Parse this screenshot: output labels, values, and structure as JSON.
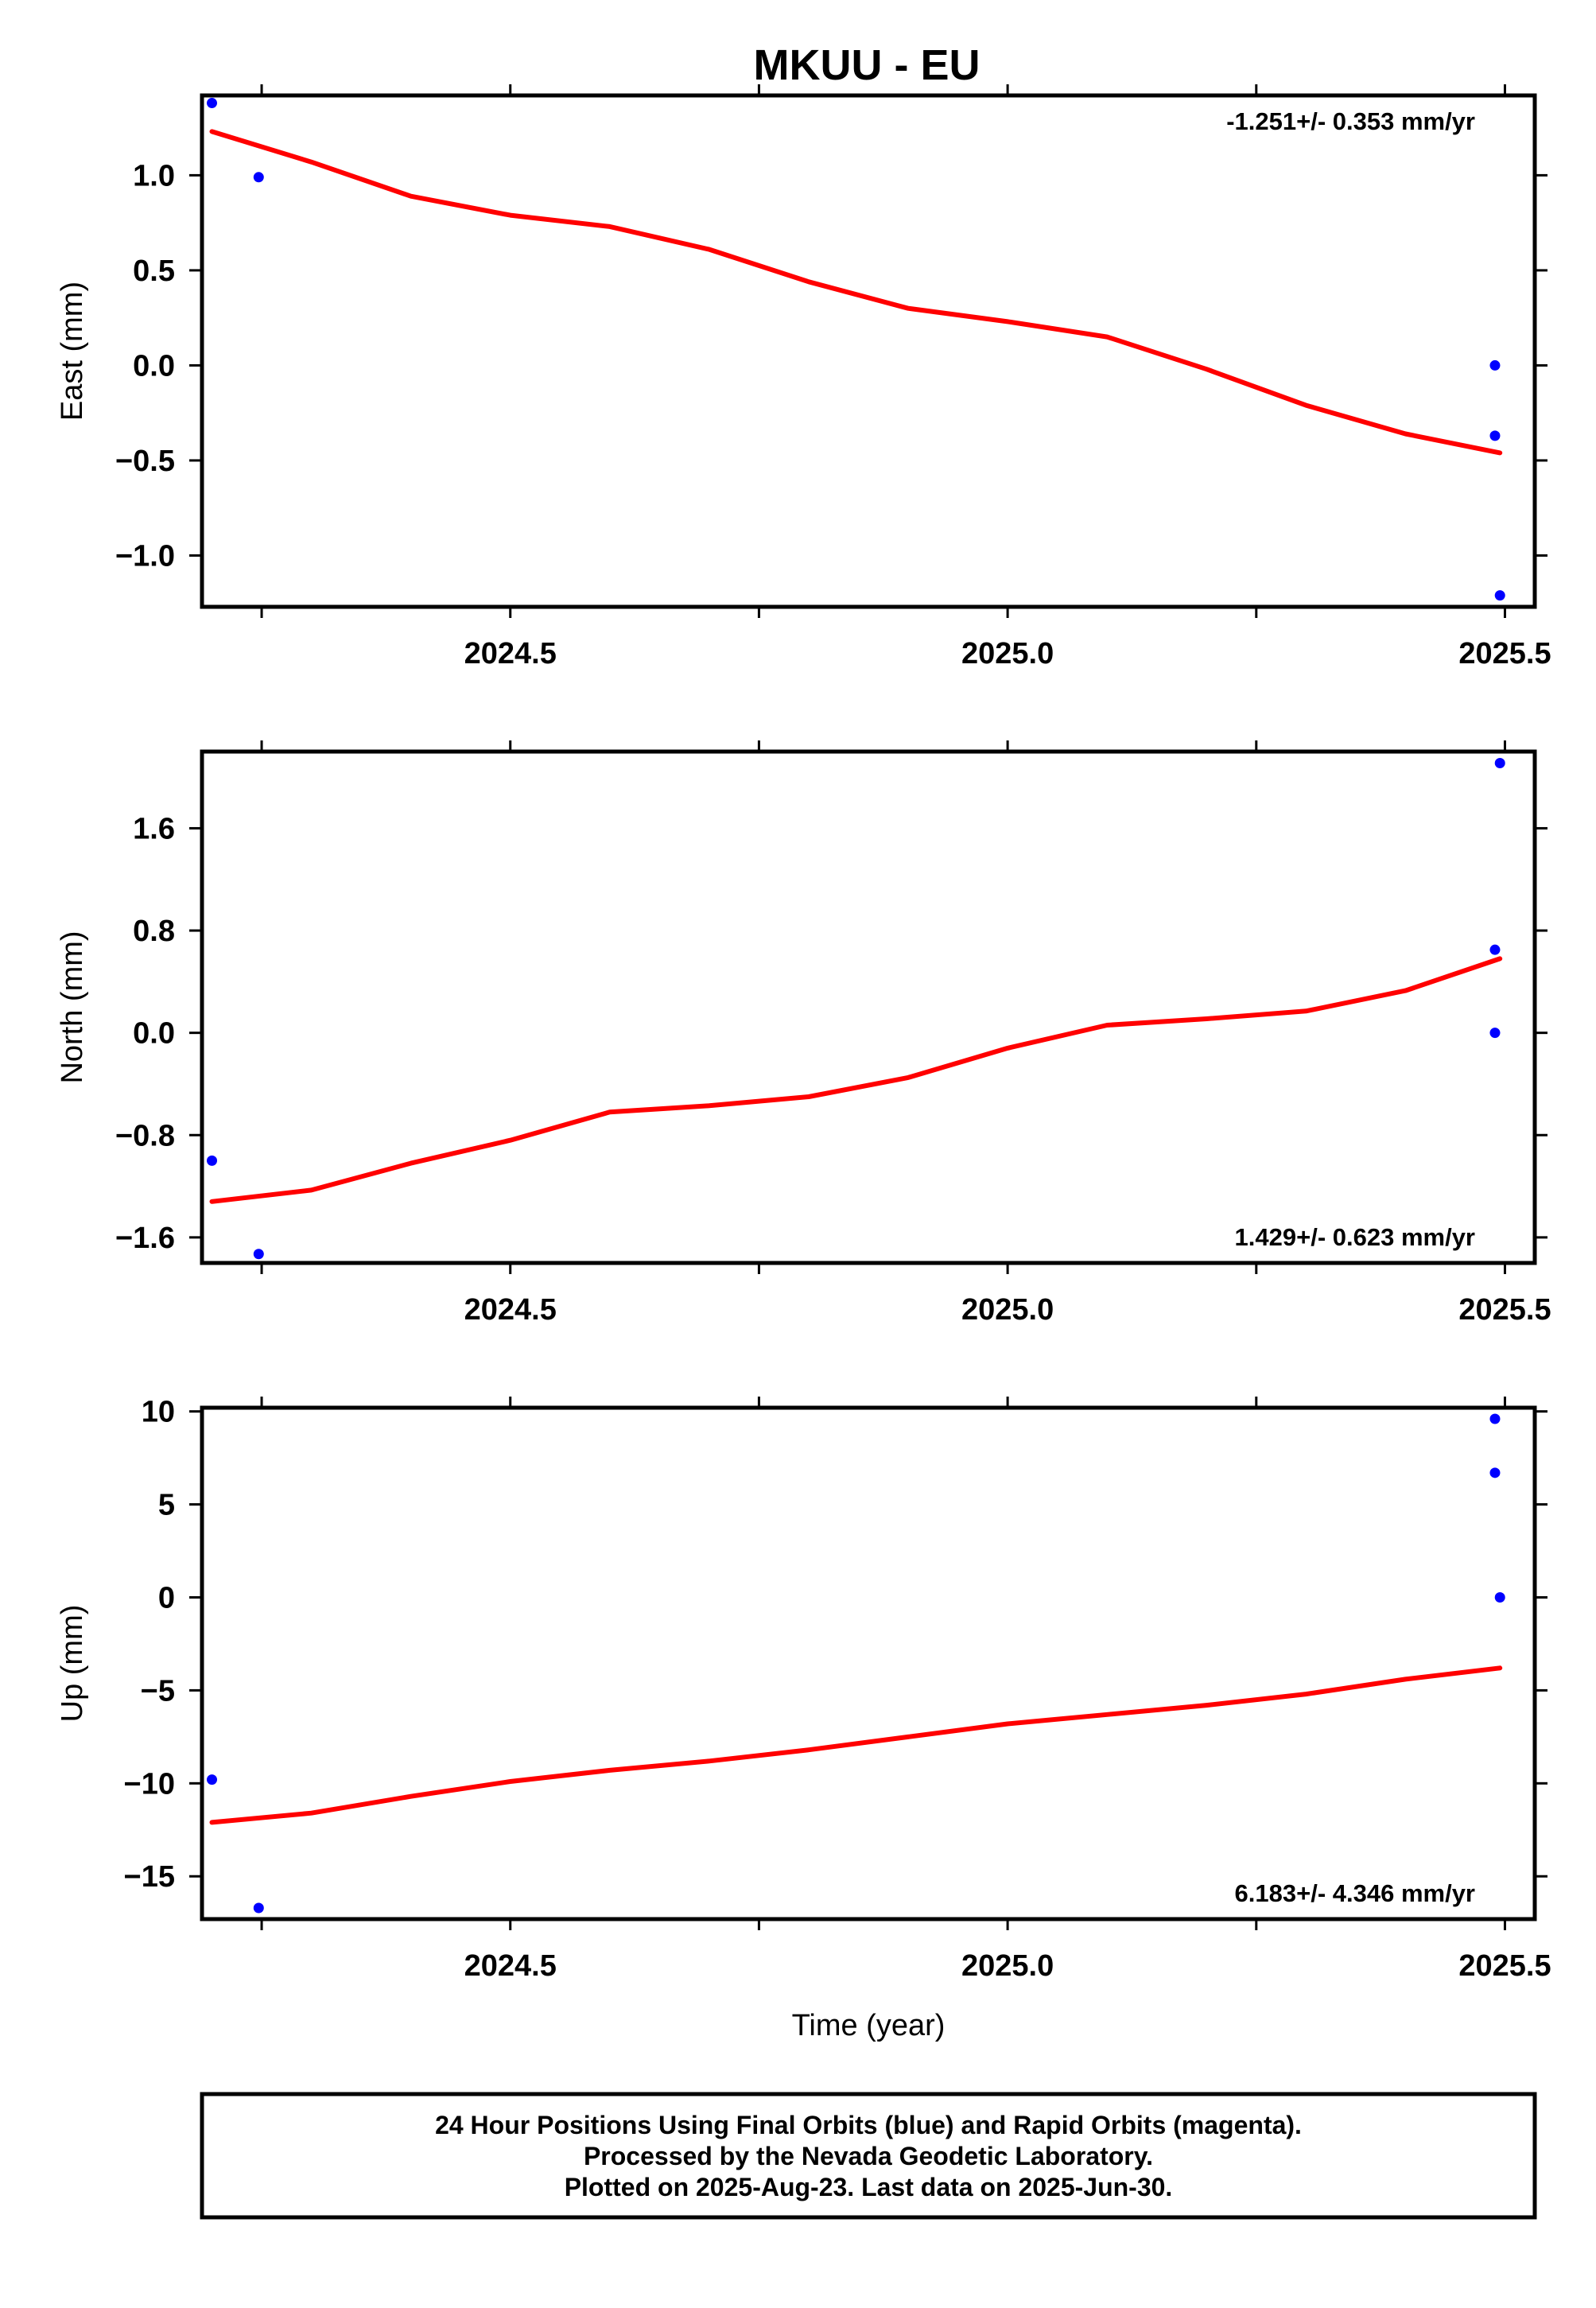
{
  "title": "MKUU - EU",
  "footer": {
    "line1": "24 Hour Positions Using Final Orbits (blue) and Rapid Orbits (magenta).",
    "line2": "Processed by the Nevada Geodetic Laboratory.",
    "line3": "Plotted on 2025-Aug-23. Last data on 2025-Jun-30."
  },
  "colors": {
    "points": "#0000ff",
    "fit": "#ff0000",
    "frame": "#000000"
  },
  "chart_data": [
    {
      "type": "scatter",
      "ylabel": "East (mm)",
      "xlabel": "",
      "xlim": [
        2024.19,
        2025.53
      ],
      "ylim": [
        -1.27,
        1.42
      ],
      "xticks": [
        "2024.5",
        "2025.0",
        "2025.5"
      ],
      "yticks": [
        "1.0",
        "0.5",
        "0.0",
        "−0.5",
        "−1.0"
      ],
      "annotation": "-1.251+/- 0.353 mm/yr",
      "annotation_position": "top-right",
      "series": [
        {
          "kind": "points",
          "x": [
            2024.2,
            2024.247,
            2025.49,
            2025.49,
            2025.495
          ],
          "y": [
            1.38,
            0.99,
            0.0,
            -0.37,
            -1.21
          ]
        },
        {
          "kind": "fit",
          "x": [
            2024.2,
            2024.3,
            2024.4,
            2024.5,
            2024.6,
            2024.7,
            2024.8,
            2024.9,
            2025.0,
            2025.1,
            2025.2,
            2025.3,
            2025.4,
            2025.495
          ],
          "y": [
            1.23,
            1.07,
            0.89,
            0.79,
            0.73,
            0.61,
            0.44,
            0.3,
            0.23,
            0.15,
            -0.02,
            -0.21,
            -0.36,
            -0.46
          ]
        }
      ]
    },
    {
      "type": "scatter",
      "ylabel": "North (mm)",
      "xlabel": "",
      "xlim": [
        2024.19,
        2025.53
      ],
      "ylim": [
        -1.8,
        2.2
      ],
      "xticks": [
        "2024.5",
        "2025.0",
        "2025.5"
      ],
      "yticks": [
        "1.6",
        "0.8",
        "0.0",
        "−0.8",
        "−1.6"
      ],
      "annotation": "1.429+/- 0.623 mm/yr",
      "annotation_position": "bottom-right",
      "series": [
        {
          "kind": "points",
          "x": [
            2024.2,
            2024.247,
            2025.49,
            2025.49,
            2025.495
          ],
          "y": [
            -1.0,
            -1.73,
            0.65,
            0.0,
            2.11
          ]
        },
        {
          "kind": "fit",
          "x": [
            2024.2,
            2024.3,
            2024.4,
            2024.5,
            2024.6,
            2024.7,
            2024.8,
            2024.9,
            2025.0,
            2025.1,
            2025.2,
            2025.3,
            2025.4,
            2025.495
          ],
          "y": [
            -1.32,
            -1.23,
            -1.02,
            -0.84,
            -0.62,
            -0.57,
            -0.5,
            -0.35,
            -0.12,
            0.06,
            0.11,
            0.17,
            0.33,
            0.58
          ]
        }
      ]
    },
    {
      "type": "scatter",
      "ylabel": "Up (mm)",
      "xlabel": "Time (year)",
      "xlim": [
        2024.19,
        2025.53
      ],
      "ylim": [
        -17.3,
        10.2
      ],
      "xticks": [
        "2024.5",
        "2025.0",
        "2025.5"
      ],
      "yticks": [
        "10",
        "5",
        "0",
        "−5",
        "−10",
        "−15"
      ],
      "annotation": "6.183+/- 4.346 mm/yr",
      "annotation_position": "bottom-right",
      "series": [
        {
          "kind": "points",
          "x": [
            2024.2,
            2024.247,
            2025.49,
            2025.49,
            2025.495
          ],
          "y": [
            -9.8,
            -16.7,
            9.6,
            6.7,
            0.0
          ]
        },
        {
          "kind": "fit",
          "x": [
            2024.2,
            2024.3,
            2024.4,
            2024.5,
            2024.6,
            2024.7,
            2024.8,
            2024.9,
            2025.0,
            2025.1,
            2025.2,
            2025.3,
            2025.4,
            2025.495
          ],
          "y": [
            -12.1,
            -11.6,
            -10.7,
            -9.9,
            -9.3,
            -8.8,
            -8.2,
            -7.5,
            -6.8,
            -6.3,
            -5.8,
            -5.2,
            -4.4,
            -3.8
          ]
        }
      ]
    }
  ]
}
